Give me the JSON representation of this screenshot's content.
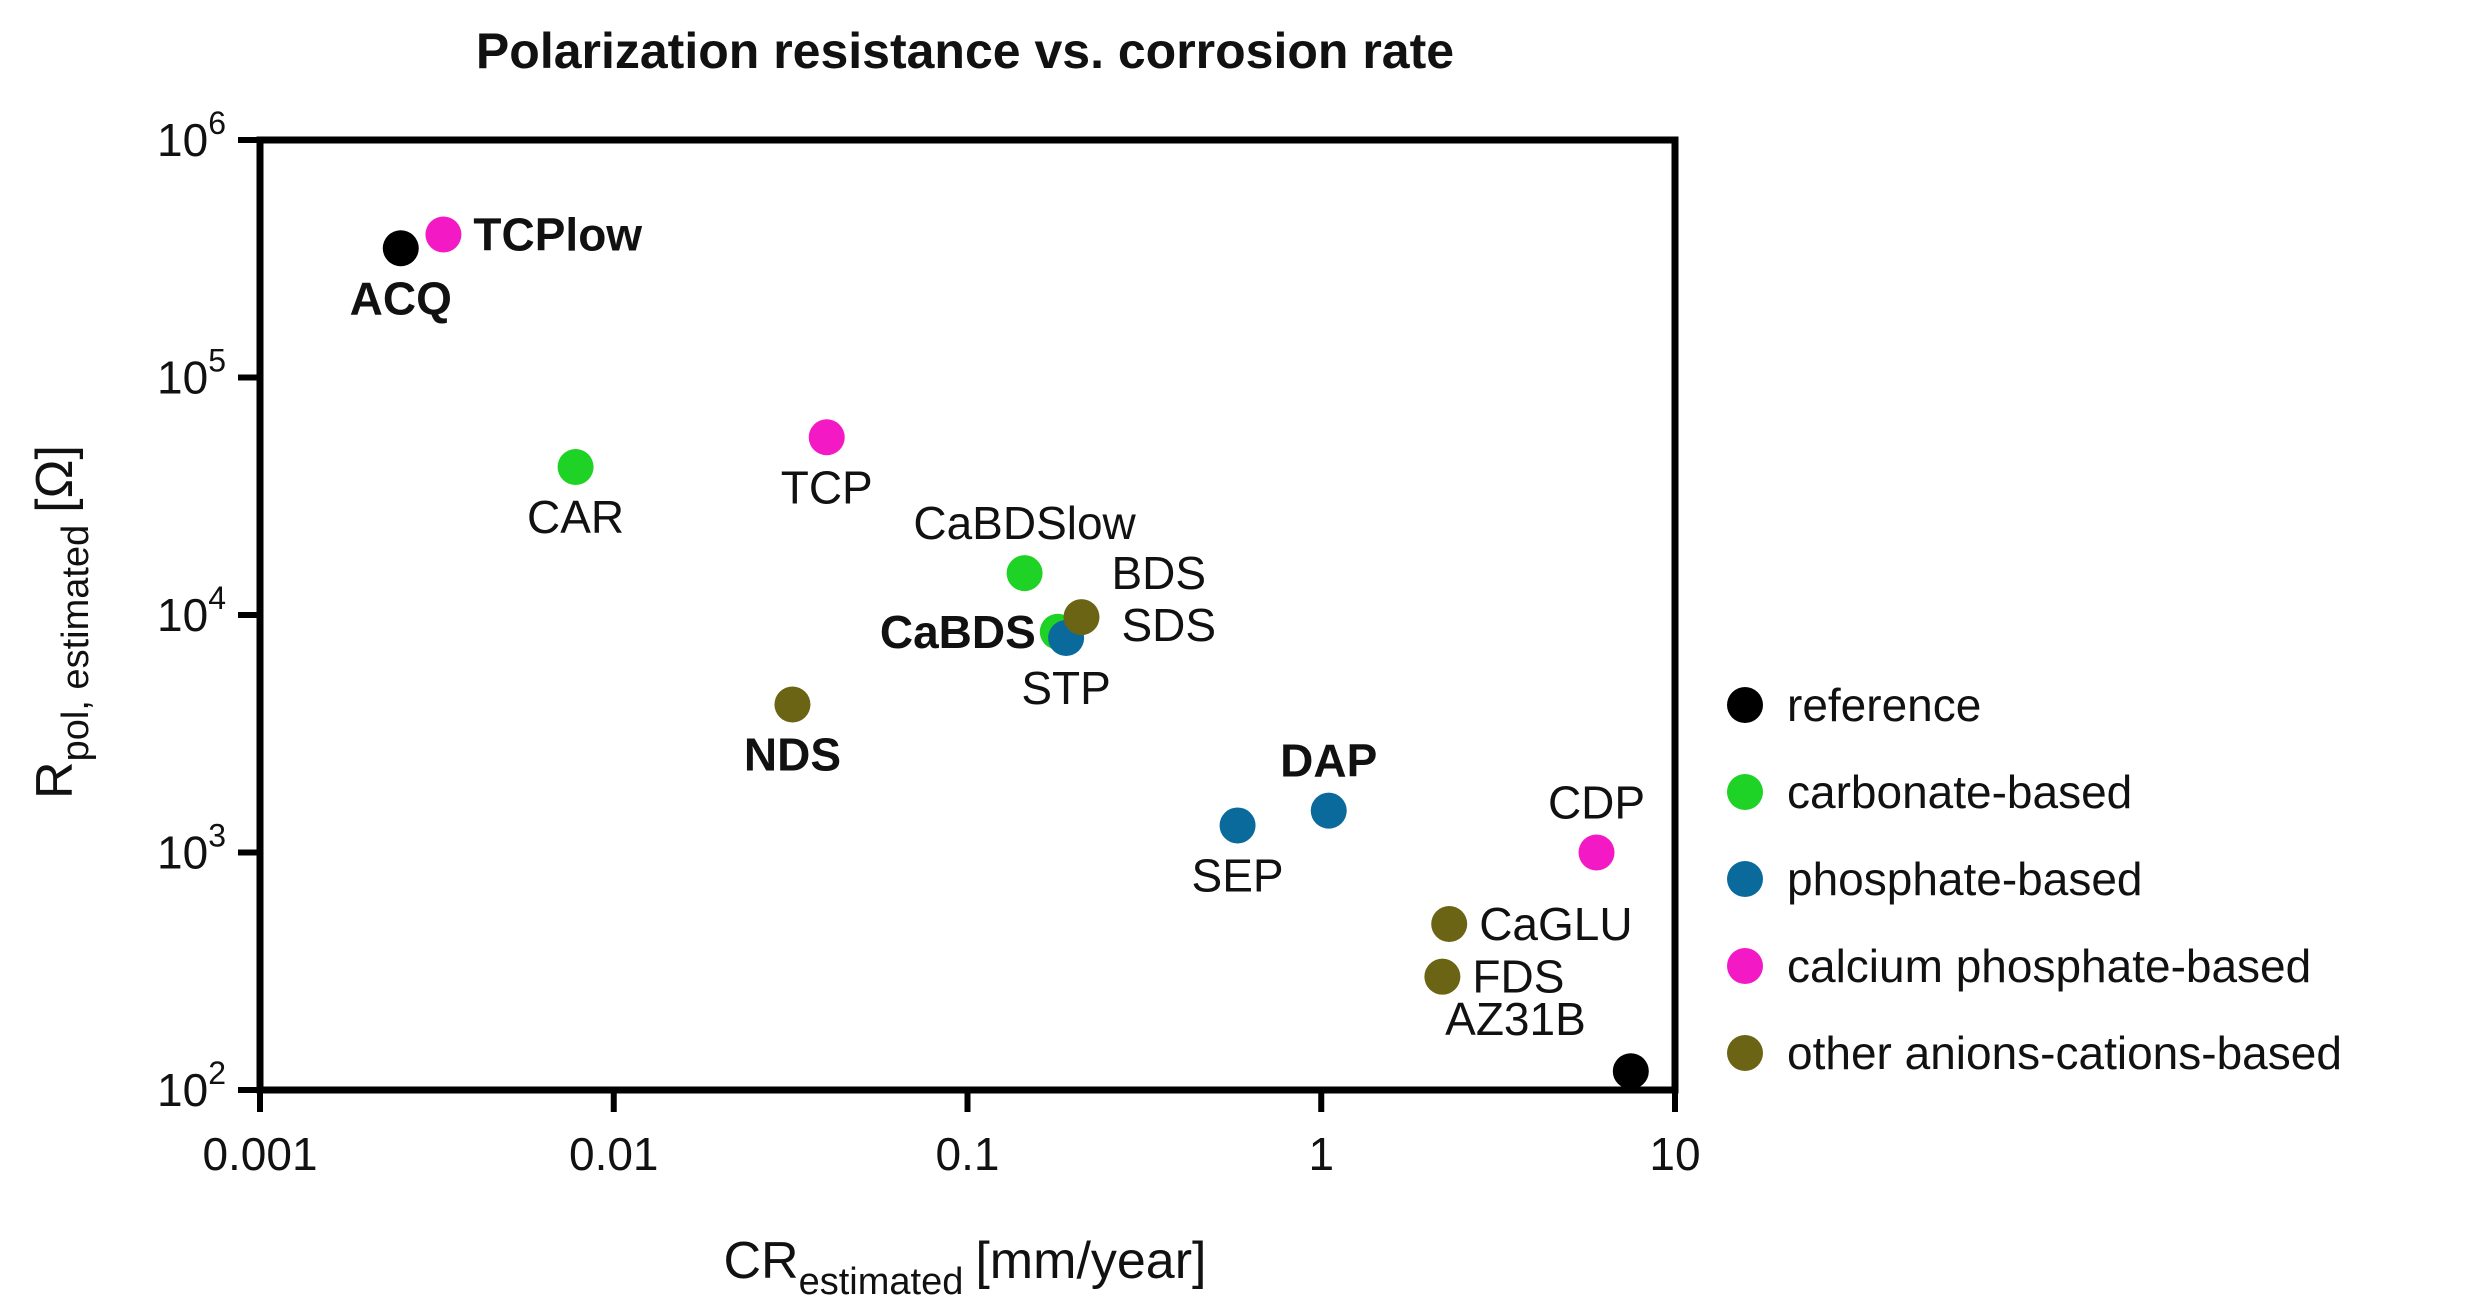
{
  "chart_data": {
    "type": "scatter",
    "title": "Polarization resistance vs. corrosion rate",
    "xlabel": {
      "main": "CR",
      "sub": "estimated",
      "unit": "[mm/year]"
    },
    "ylabel": {
      "main": "R",
      "sub": "pol, estimated",
      "unit": "[Ω]"
    },
    "xscale": "log",
    "yscale": "log",
    "xlim": [
      0.001,
      10
    ],
    "ylim": [
      100,
      1000000
    ],
    "x_ticks": [
      {
        "value": 0.001,
        "label": "0.001"
      },
      {
        "value": 0.01,
        "label": "0.01"
      },
      {
        "value": 0.1,
        "label": "0.1"
      },
      {
        "value": 1,
        "label": "1"
      },
      {
        "value": 10,
        "label": "10"
      }
    ],
    "y_ticks": [
      {
        "value": 100,
        "base": "10",
        "exp": "2"
      },
      {
        "value": 1000,
        "base": "10",
        "exp": "3"
      },
      {
        "value": 10000,
        "base": "10",
        "exp": "4"
      },
      {
        "value": 100000,
        "base": "10",
        "exp": "5"
      },
      {
        "value": 1000000,
        "base": "10",
        "exp": "6"
      }
    ],
    "legend_position": "right",
    "categories": [
      {
        "key": "reference",
        "name": "reference",
        "color": "#000000"
      },
      {
        "key": "carbonate",
        "name": "carbonate-based",
        "color": "#1ed226"
      },
      {
        "key": "phosphate",
        "name": "phosphate-based",
        "color": "#0b6a9c"
      },
      {
        "key": "caphosphate",
        "name": "calcium phosphate-based",
        "color": "#f31ac5"
      },
      {
        "key": "other",
        "name": "other anions-cations-based",
        "color": "#6b6414"
      }
    ],
    "points": [
      {
        "label": "ACQ",
        "x": 0.0025,
        "y": 350000,
        "category": "reference",
        "bold": true,
        "label_pos": "below"
      },
      {
        "label": "TCPlow",
        "x": 0.0033,
        "y": 400000,
        "category": "caphosphate",
        "bold": true,
        "label_pos": "right"
      },
      {
        "label": "CAR",
        "x": 0.0078,
        "y": 42000,
        "category": "carbonate",
        "bold": false,
        "label_pos": "below"
      },
      {
        "label": "TCP",
        "x": 0.04,
        "y": 56000,
        "category": "caphosphate",
        "bold": false,
        "label_pos": "below"
      },
      {
        "label": "CaBDSlow",
        "x": 0.145,
        "y": 15000,
        "category": "carbonate",
        "bold": false,
        "label_pos": "above"
      },
      {
        "label": "CaBDS",
        "x": 0.18,
        "y": 8500,
        "category": "carbonate",
        "bold": true,
        "label_pos": "left"
      },
      {
        "label": "STP",
        "x": 0.19,
        "y": 8000,
        "category": "phosphate",
        "bold": false,
        "label_pos": "below"
      },
      {
        "label": "BDS",
        "x": 0.21,
        "y": 9800,
        "category": "other",
        "bold": false,
        "label_pos": "upper-right"
      },
      {
        "label": "SDS",
        "x": 0.21,
        "y": 9800,
        "category": "other",
        "bold": false,
        "label_pos": "lower-right"
      },
      {
        "label": "NDS",
        "x": 0.032,
        "y": 4200,
        "category": "other",
        "bold": true,
        "label_pos": "below"
      },
      {
        "label": "SEP",
        "x": 0.58,
        "y": 1300,
        "category": "phosphate",
        "bold": false,
        "label_pos": "below"
      },
      {
        "label": "DAP",
        "x": 1.05,
        "y": 1500,
        "category": "phosphate",
        "bold": true,
        "label_pos": "above"
      },
      {
        "label": "CDP",
        "x": 6.0,
        "y": 1000,
        "category": "caphosphate",
        "bold": false,
        "label_pos": "above"
      },
      {
        "label": "CaGLU",
        "x": 2.3,
        "y": 500,
        "category": "other",
        "bold": false,
        "label_pos": "right"
      },
      {
        "label": "FDS",
        "x": 2.2,
        "y": 300,
        "category": "other",
        "bold": false,
        "label_pos": "right"
      },
      {
        "label": "AZ31B",
        "x": 7.5,
        "y": 120,
        "category": "reference",
        "bold": false,
        "label_pos": "upper-left"
      }
    ]
  }
}
